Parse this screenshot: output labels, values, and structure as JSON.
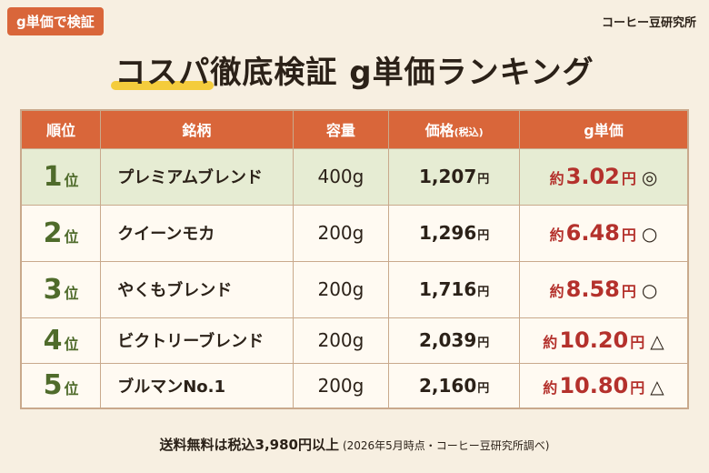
{
  "badge": "g単価で検証",
  "source": "コーヒー豆研究所",
  "title": {
    "highlight": "コスパ",
    "rest": "徹底検証 g単価ランキング"
  },
  "table": {
    "headers": {
      "rank": "順位",
      "name": "銘柄",
      "capacity": "容量",
      "price": "価格",
      "price_note": "(税込)",
      "unit_price": "g単価"
    },
    "rows": [
      {
        "rank": "1",
        "rank_unit": "位",
        "name": "プレミアムブレンド",
        "capacity": "400g",
        "price": "1,207",
        "price_unit": "円",
        "unit_prefix": "約",
        "unit_price": "3.02",
        "unit_yen": "円",
        "mark": "◎"
      },
      {
        "rank": "2",
        "rank_unit": "位",
        "name": "クイーンモカ",
        "capacity": "200g",
        "price": "1,296",
        "price_unit": "円",
        "unit_prefix": "約",
        "unit_price": "6.48",
        "unit_yen": "円",
        "mark": "○"
      },
      {
        "rank": "3",
        "rank_unit": "位",
        "name": "やくもブレンド",
        "capacity": "200g",
        "price": "1,716",
        "price_unit": "円",
        "unit_prefix": "約",
        "unit_price": "8.58",
        "unit_yen": "円",
        "mark": "○"
      },
      {
        "rank": "4",
        "rank_unit": "位",
        "name": "ビクトリーブレンド",
        "capacity": "200g",
        "price": "2,039",
        "price_unit": "円",
        "unit_prefix": "約",
        "unit_price": "10.20",
        "unit_yen": "円",
        "mark": "△"
      },
      {
        "rank": "5",
        "rank_unit": "位",
        "name": "ブルマンNo.1",
        "capacity": "200g",
        "price": "2,160",
        "price_unit": "円",
        "unit_prefix": "約",
        "unit_price": "10.80",
        "unit_yen": "円",
        "mark": "△"
      }
    ]
  },
  "note": {
    "main": "送料無料は税込3,980円以上",
    "sub": "(2026年5月時点・コーヒー豆研究所調べ)"
  }
}
